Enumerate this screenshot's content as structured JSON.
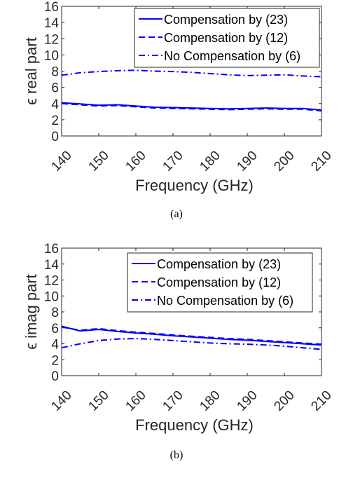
{
  "chart_data": [
    {
      "type": "line",
      "xlabel": "Frequency (GHz)",
      "ylabel": "ϵ real part",
      "xlim": [
        140,
        210
      ],
      "ylim": [
        0,
        16
      ],
      "xticks": [
        140,
        150,
        160,
        170,
        180,
        190,
        200,
        210
      ],
      "yticks": [
        0,
        2,
        4,
        6,
        8,
        10,
        12,
        14,
        16
      ],
      "grid": false,
      "legend": "top-right",
      "caption": "(a)",
      "x": [
        140,
        145,
        150,
        155,
        160,
        165,
        170,
        175,
        180,
        185,
        190,
        195,
        200,
        205,
        210
      ],
      "series": [
        {
          "name": "Compensation by (23)",
          "style": "solid",
          "color": "#0000ff",
          "values": [
            4.1,
            3.95,
            3.8,
            3.85,
            3.7,
            3.55,
            3.5,
            3.45,
            3.4,
            3.35,
            3.4,
            3.45,
            3.4,
            3.4,
            3.2
          ]
        },
        {
          "name": "Compensation by (12)",
          "style": "dashed",
          "color": "#0000ff",
          "values": [
            4.0,
            3.85,
            3.7,
            3.75,
            3.6,
            3.45,
            3.4,
            3.35,
            3.3,
            3.25,
            3.3,
            3.35,
            3.3,
            3.3,
            3.1
          ]
        },
        {
          "name": "No Compensation by (6)",
          "style": "dashdot",
          "color": "#0000ff",
          "values": [
            7.5,
            7.8,
            7.95,
            8.05,
            8.1,
            8.0,
            7.95,
            7.85,
            7.7,
            7.55,
            7.45,
            7.5,
            7.55,
            7.4,
            7.3
          ]
        }
      ]
    },
    {
      "type": "line",
      "xlabel": "Frequency (GHz)",
      "ylabel": "ϵ imag part",
      "xlim": [
        140,
        210
      ],
      "ylim": [
        0,
        16
      ],
      "xticks": [
        140,
        150,
        160,
        170,
        180,
        190,
        200,
        210
      ],
      "yticks": [
        0,
        2,
        4,
        6,
        8,
        10,
        12,
        14,
        16
      ],
      "grid": false,
      "legend": "top-right",
      "caption": "(b)",
      "x": [
        140,
        145,
        150,
        155,
        160,
        165,
        170,
        175,
        180,
        185,
        190,
        195,
        200,
        205,
        210
      ],
      "series": [
        {
          "name": "Compensation by (23)",
          "style": "solid",
          "color": "#0000ff",
          "values": [
            6.2,
            5.6,
            5.8,
            5.55,
            5.35,
            5.2,
            5.0,
            4.85,
            4.7,
            4.55,
            4.45,
            4.3,
            4.15,
            4.0,
            3.85
          ]
        },
        {
          "name": "Compensation by (12)",
          "style": "dashed",
          "color": "#0000ff",
          "values": [
            6.1,
            5.7,
            5.9,
            5.65,
            5.45,
            5.3,
            5.1,
            4.95,
            4.8,
            4.65,
            4.55,
            4.4,
            4.25,
            4.1,
            3.95
          ]
        },
        {
          "name": "No Compensation by (6)",
          "style": "dashdot",
          "color": "#0000ff",
          "values": [
            3.5,
            4.0,
            4.4,
            4.6,
            4.65,
            4.55,
            4.4,
            4.25,
            4.1,
            4.0,
            3.95,
            3.85,
            3.7,
            3.5,
            3.3
          ]
        }
      ]
    }
  ]
}
